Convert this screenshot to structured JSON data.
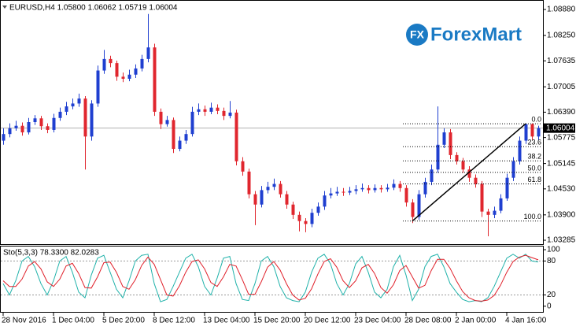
{
  "logo": {
    "icon": "FX",
    "text": "ForexMart"
  },
  "chart_data": [
    {
      "type": "candlestick",
      "title": "EURUSD,H4 1.05800 1.06062 1.05719 1.06004",
      "categories": [
        "28 Nov 2016",
        null,
        null,
        null,
        null,
        null,
        null,
        null,
        "1 Dec 04:00",
        null,
        null,
        null,
        null,
        null,
        null,
        null,
        "5 Dec 20:00",
        null,
        null,
        null,
        null,
        null,
        null,
        null,
        "8 Dec 12:00",
        null,
        null,
        null,
        null,
        null,
        null,
        null,
        "13 Dec 04:00",
        null,
        null,
        null,
        null,
        null,
        null,
        null,
        "15 Dec 20:00",
        null,
        null,
        null,
        null,
        null,
        null,
        null,
        "20 Dec 12:00",
        null,
        null,
        null,
        null,
        null,
        null,
        null,
        "23 Dec 04:00",
        null,
        null,
        null,
        null,
        null,
        null,
        null,
        "28 Dec 08:00",
        null,
        null,
        null,
        null,
        null,
        null,
        null,
        "2 Jan 00:00",
        null,
        null,
        null,
        null,
        null,
        null,
        null,
        "4 Jan 16:00",
        null,
        null,
        null,
        null,
        null
      ],
      "open": [
        1.057,
        1.0586,
        1.06,
        1.0606,
        1.059,
        1.0615,
        1.0624,
        1.0605,
        1.0596,
        1.0625,
        1.064,
        1.0653,
        1.066,
        1.0672,
        1.058,
        1.066,
        1.074,
        1.0768,
        1.0758,
        1.0725,
        1.072,
        1.073,
        1.0745,
        1.0768,
        1.0796,
        1.064,
        1.061,
        1.062,
        1.055,
        1.057,
        1.0586,
        1.064,
        1.0646,
        1.064,
        1.065,
        1.0642,
        1.063,
        1.0638,
        1.052,
        1.0495,
        1.044,
        1.0415,
        1.045,
        1.0458,
        1.0465,
        1.044,
        1.0415,
        1.039,
        1.0375,
        1.0368,
        1.0395,
        1.041,
        1.0437,
        1.0442,
        1.0446,
        1.0444,
        1.0448,
        1.0452,
        1.0455,
        1.045,
        1.0455,
        1.0452,
        1.0456,
        1.0465,
        1.0455,
        1.042,
        1.0385,
        1.044,
        1.047,
        1.05,
        1.056,
        1.059,
        1.0535,
        1.052,
        1.05,
        1.048,
        1.0465,
        1.0398,
        1.039,
        1.04,
        1.043,
        1.048,
        1.052,
        1.057,
        1.061,
        1.058
      ],
      "high": [
        1.06,
        1.0612,
        1.0618,
        1.0614,
        1.0625,
        1.0632,
        1.063,
        1.0612,
        1.0635,
        1.065,
        1.0664,
        1.0672,
        1.0684,
        1.0678,
        1.0668,
        1.0752,
        1.079,
        1.0776,
        1.0764,
        1.0735,
        1.0742,
        1.0755,
        1.0778,
        1.0877,
        1.0805,
        1.0648,
        1.063,
        1.0626,
        1.058,
        1.0596,
        1.0652,
        1.066,
        1.0655,
        1.0662,
        1.0658,
        1.065,
        1.0666,
        1.0645,
        1.053,
        1.0502,
        1.0448,
        1.046,
        1.047,
        1.0478,
        1.0472,
        1.0448,
        1.0422,
        1.0398,
        1.0382,
        1.0405,
        1.042,
        1.0448,
        1.0455,
        1.0458,
        1.0455,
        1.0458,
        1.0462,
        1.0466,
        1.0462,
        1.0464,
        1.0462,
        1.0465,
        1.0476,
        1.0472,
        1.0462,
        1.0428,
        1.045,
        1.048,
        1.0512,
        1.0653,
        1.06,
        1.0598,
        1.0542,
        1.0528,
        1.0508,
        1.0488,
        1.0472,
        1.0405,
        1.041,
        1.044,
        1.049,
        1.053,
        1.058,
        1.0612,
        1.0612,
        1.06062
      ],
      "low": [
        1.056,
        1.0578,
        1.0594,
        1.0582,
        1.0585,
        1.0608,
        1.0596,
        1.0588,
        1.059,
        1.0618,
        1.0632,
        1.0646,
        1.0652,
        1.05,
        1.057,
        1.0652,
        1.0732,
        1.0748,
        1.0715,
        1.0712,
        1.0714,
        1.0722,
        1.0738,
        1.076,
        1.063,
        1.0598,
        1.0604,
        1.054,
        1.0544,
        1.0562,
        1.058,
        1.0632,
        1.063,
        1.0634,
        1.0634,
        1.062,
        1.0624,
        1.051,
        1.0485,
        1.043,
        1.0365,
        1.0408,
        1.0442,
        1.045,
        1.0432,
        1.0405,
        1.038,
        1.035,
        1.0348,
        1.036,
        1.0388,
        1.0402,
        1.043,
        1.0436,
        1.0436,
        1.0438,
        1.044,
        1.0446,
        1.0442,
        1.0444,
        1.0444,
        1.0446,
        1.045,
        1.0446,
        1.041,
        1.037,
        1.0378,
        1.0432,
        1.0462,
        1.0492,
        1.0552,
        1.0525,
        1.0512,
        1.0492,
        1.047,
        1.0456,
        1.0385,
        1.0338,
        1.0382,
        1.0394,
        1.0424,
        1.0472,
        1.0512,
        1.0562,
        1.0572,
        1.05719
      ],
      "close": [
        1.0586,
        1.06,
        1.0606,
        1.059,
        1.0615,
        1.0624,
        1.0605,
        1.0596,
        1.0625,
        1.064,
        1.0653,
        1.066,
        1.0672,
        1.058,
        1.066,
        1.074,
        1.0768,
        1.0758,
        1.0725,
        1.072,
        1.073,
        1.0745,
        1.0768,
        1.0796,
        1.064,
        1.061,
        1.062,
        1.055,
        1.057,
        1.0586,
        1.064,
        1.0646,
        1.064,
        1.065,
        1.0642,
        1.063,
        1.0638,
        1.052,
        1.0495,
        1.044,
        1.0415,
        1.045,
        1.0458,
        1.0465,
        1.044,
        1.0415,
        1.039,
        1.0375,
        1.0368,
        1.0395,
        1.041,
        1.0437,
        1.0442,
        1.0446,
        1.0444,
        1.0448,
        1.0452,
        1.0455,
        1.045,
        1.0455,
        1.0452,
        1.0456,
        1.0465,
        1.0455,
        1.042,
        1.0385,
        1.044,
        1.047,
        1.05,
        1.056,
        1.059,
        1.0535,
        1.052,
        1.05,
        1.048,
        1.0465,
        1.0398,
        1.039,
        1.04,
        1.043,
        1.048,
        1.052,
        1.057,
        1.061,
        1.058,
        1.06004
      ],
      "up_color": "#1f3fd0",
      "down_color": "#e0262e",
      "ylim": [
        1.0319,
        1.0911
      ],
      "yticks": [
        {
          "value": 1.0888,
          "label": "1.08880"
        },
        {
          "value": 1.0825,
          "label": "1.08250"
        },
        {
          "value": 1.07635,
          "label": "1.07635"
        },
        {
          "value": 1.07005,
          "label": "1.07005"
        },
        {
          "value": 1.0639,
          "label": "1.06390"
        },
        {
          "value": 1.05775,
          "label": "1.05775"
        },
        {
          "value": 1.05145,
          "label": "1.05145"
        },
        {
          "value": 1.0453,
          "label": "1.04530"
        },
        {
          "value": 1.039,
          "label": "1.03900"
        },
        {
          "value": 1.03285,
          "label": "1.03285"
        }
      ],
      "last_price": {
        "value": 1.06004,
        "label": "1.06004"
      },
      "fibo": {
        "high": 1.0611,
        "low": 1.0375,
        "levels": [
          {
            "value": 0,
            "label": "0.0"
          },
          23.6,
          38.2,
          {
            "value": 50,
            "label": "50.0"
          },
          61.8,
          {
            "value": 100,
            "label": "100.0"
          }
        ]
      }
    },
    {
      "type": "line",
      "title": "Sto(5,3,3) 78.3300 82.0283",
      "series": [
        {
          "color": "#20b2aa",
          "values": [
            40,
            20,
            45,
            80,
            88,
            70,
            40,
            20,
            45,
            80,
            88,
            60,
            25,
            15,
            55,
            85,
            90,
            60,
            30,
            15,
            45,
            80,
            90,
            92,
            40,
            8,
            12,
            35,
            60,
            85,
            92,
            70,
            35,
            20,
            50,
            85,
            88,
            40,
            12,
            10,
            40,
            80,
            88,
            70,
            35,
            15,
            10,
            8,
            25,
            60,
            85,
            92,
            75,
            40,
            20,
            40,
            75,
            88,
            60,
            25,
            15,
            30,
            70,
            90,
            55,
            10,
            30,
            70,
            88,
            92,
            70,
            40,
            25,
            12,
            8,
            10,
            8,
            15,
            35,
            60,
            85,
            92,
            85,
            92,
            80,
            78.33
          ]
        },
        {
          "color": "#e0202a",
          "values": [
            45,
            35,
            35,
            48,
            71,
            79,
            66,
            43,
            35,
            48,
            71,
            76,
            58,
            33,
            32,
            52,
            77,
            78,
            60,
            35,
            30,
            47,
            72,
            87,
            74,
            47,
            20,
            18,
            36,
            60,
            79,
            82,
            66,
            42,
            35,
            52,
            74,
            71,
            47,
            21,
            21,
            43,
            69,
            79,
            64,
            40,
            20,
            11,
            14,
            31,
            57,
            79,
            84,
            69,
            45,
            33,
            45,
            68,
            74,
            58,
            33,
            23,
            38,
            63,
            72,
            52,
            32,
            37,
            63,
            83,
            83,
            67,
            45,
            26,
            15,
            10,
            9,
            11,
            19,
            37,
            60,
            79,
            87,
            90,
            86,
            82.03
          ]
        }
      ],
      "ylim": [
        -10,
        107
      ],
      "yticks": [
        100,
        80,
        20,
        0
      ],
      "levels": [
        80,
        20
      ]
    }
  ]
}
